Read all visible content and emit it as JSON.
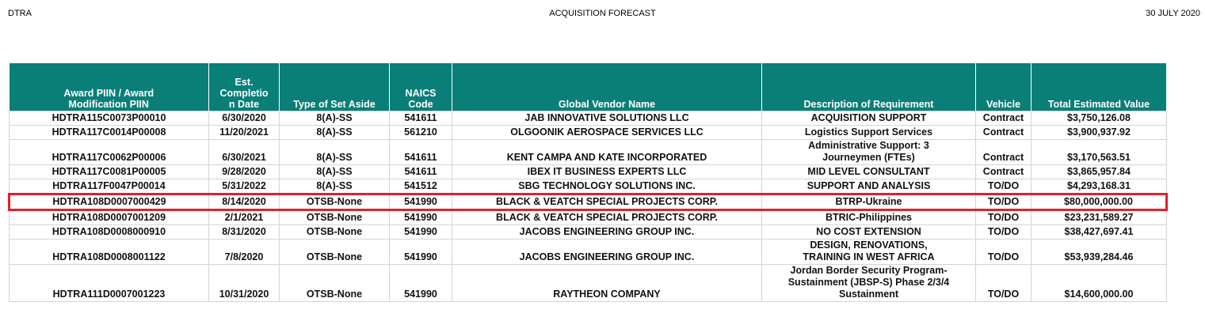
{
  "header": {
    "left": "DTRA",
    "title": "ACQUISITION FORECAST",
    "date": "30 JULY 2020"
  },
  "table": {
    "columns": [
      "Award PIIN / Award\nModification PIIN",
      "Est.\nCompletio\nn Date",
      "Type of Set Aside",
      "NAICS\nCode",
      "Global Vendor Name",
      "Description of Requirement",
      "Vehicle",
      "Total Estimated Value"
    ],
    "rows": [
      [
        "HDTRA115C0073P00010",
        "6/30/2020",
        "8(A)-SS",
        "541611",
        "JAB INNOVATIVE SOLUTIONS  LLC",
        "ACQUISITION SUPPORT",
        "Contract",
        "$3,750,126.08"
      ],
      [
        "HDTRA117C0014P00008",
        "11/20/2021",
        "8(A)-SS",
        "561210",
        "OLGOONIK AEROSPACE SERVICES  LLC",
        "Logistics Support Services",
        "Contract",
        "$3,900,937.92"
      ],
      [
        "HDTRA117C0062P00006",
        "6/30/2021",
        "8(A)-SS",
        "541611",
        "KENT  CAMPA AND KATE INCORPORATED",
        "Administrative Support: 3\nJourneymen (FTEs)",
        "Contract",
        "$3,170,563.51"
      ],
      [
        "HDTRA117C0081P00005",
        "9/28/2020",
        "8(A)-SS",
        "541611",
        "IBEX IT BUSINESS EXPERTS LLC",
        "MID LEVEL CONSULTANT",
        "Contract",
        "$3,865,957.84"
      ],
      [
        "HDTRA117F0047P00014",
        "5/31/2022",
        "8(A)-SS",
        "541512",
        "SBG TECHNOLOGY SOLUTIONS INC.",
        "SUPPORT AND ANALYSIS",
        "TO/DO",
        "$4,293,168.31"
      ],
      [
        "HDTRA108D0007000429",
        "8/14/2020",
        "OTSB-None",
        "541990",
        "BLACK & VEATCH SPECIAL PROJECTS CORP.",
        "BTRP-Ukraine",
        "TO/DO",
        "$80,000,000.00"
      ],
      [
        "HDTRA108D0007001209",
        "2/1/2021",
        "OTSB-None",
        "541990",
        "BLACK & VEATCH SPECIAL PROJECTS CORP.",
        "BTRIC-Philippines",
        "TO/DO",
        "$23,231,589.27"
      ],
      [
        "HDTRA108D0008000910",
        "8/31/2020",
        "OTSB-None",
        "541990",
        "JACOBS ENGINEERING GROUP INC.",
        "NO COST EXTENSION",
        "TO/DO",
        "$38,427,697.41"
      ],
      [
        "HDTRA108D0008001122",
        "7/8/2020",
        "OTSB-None",
        "541990",
        "JACOBS ENGINEERING GROUP INC.",
        "DESIGN, RENOVATIONS,\nTRAINING IN WEST AFRICA",
        "TO/DO",
        "$53,939,284.46"
      ],
      [
        "HDTRA111D0007001223",
        "10/31/2020",
        "OTSB-None",
        "541990",
        "RAYTHEON COMPANY",
        "Jordan Border Security Program-\nSustainment (JBSP-S) Phase 2/3/4\nSustainment",
        "TO/DO",
        "$14,600,000.00"
      ]
    ]
  }
}
